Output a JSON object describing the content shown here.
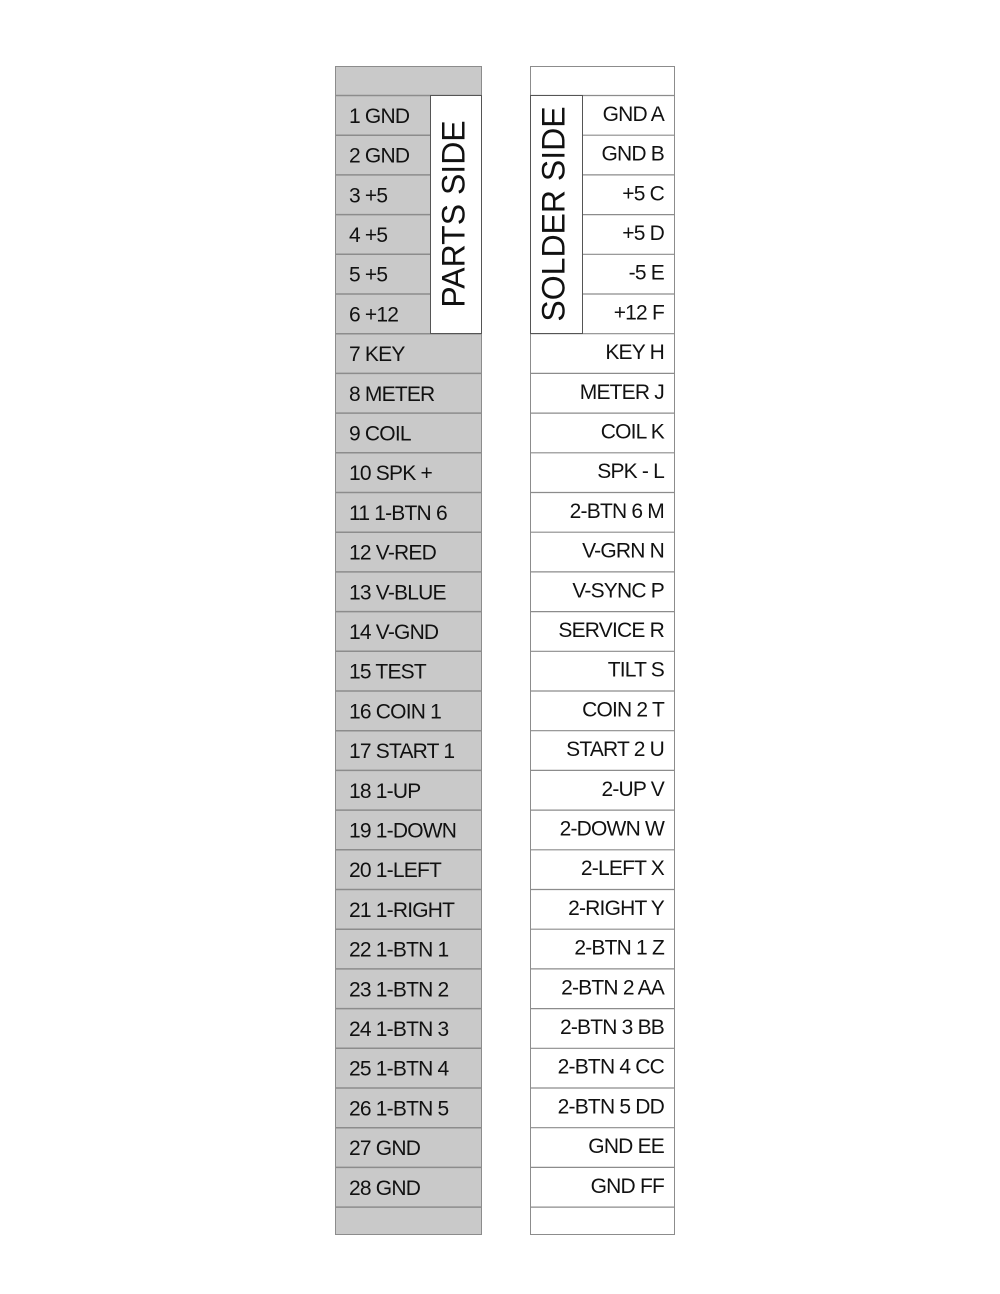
{
  "parts_side": {
    "label": "PARTS SIDE",
    "pins": [
      "1 GND",
      "2 GND",
      "3 +5",
      "4 +5",
      "5 +5",
      "6 +12",
      "7 KEY",
      "8 METER",
      "9 COIL",
      "10 SPK +",
      "11 1-BTN 6",
      "12 V-RED",
      "13 V-BLUE",
      "14 V-GND",
      "15 TEST",
      "16 COIN 1",
      "17 START 1",
      "18 1-UP",
      "19 1-DOWN",
      "20 1-LEFT",
      "21 1-RIGHT",
      "22 1-BTN 1",
      "23 1-BTN 2",
      "24 1-BTN 3",
      "25 1-BTN 4",
      "26 1-BTN 5",
      "27 GND",
      "28 GND"
    ]
  },
  "solder_side": {
    "label": "SOLDER SIDE",
    "pins": [
      "GND A",
      "GND B",
      "+5 C",
      "+5 D",
      "-5 E",
      "+12 F",
      "KEY H",
      "METER J",
      "COIL K",
      "SPK - L",
      "2-BTN 6 M",
      "V-GRN N",
      "V-SYNC P",
      "SERVICE R",
      "TILT S",
      "COIN 2 T",
      "START 2 U",
      "2-UP V",
      "2-DOWN W",
      "2-LEFT X",
      "2-RIGHT Y",
      "2-BTN 1 Z",
      "2-BTN 2 AA",
      "2-BTN 3 BB",
      "2-BTN 4 CC",
      "2-BTN 5 DD",
      "GND EE",
      "GND FF"
    ]
  }
}
